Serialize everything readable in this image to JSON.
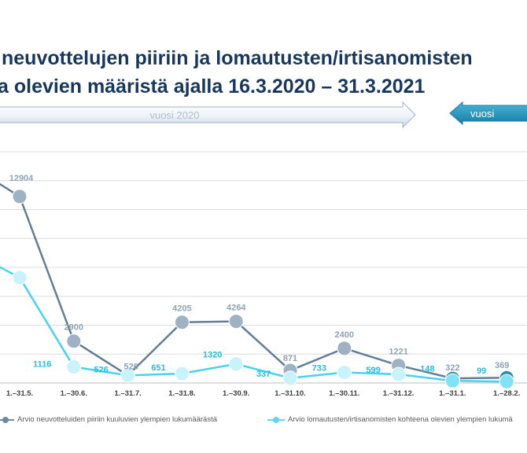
{
  "title": {
    "line1": "neuvottelujen piiriin ja lomautusten/irtisanomisten",
    "line2": "a olevien määristä ajalla 16.3.2020 – 31.3.2021"
  },
  "banners": {
    "year_2020": "vuosi 2020",
    "year_2021": "vuosi"
  },
  "legend": {
    "series1": "Arvio neuvotteluiden piiriin kuuluvien ylempien lukumäärästä",
    "series2": "Arvio lomautusten/irtisanomisten kohteena olevien ylempien lukumä"
  },
  "colors": {
    "series1": "#627e95",
    "series1_marker": "#9fb2c4",
    "series1_label": "#8da3b6",
    "series2": "#47d2ee",
    "series2_marker": "#c8f3fb",
    "series2_label": "#25bde0",
    "series1_2021_marker": "#2f8fa8",
    "title": "#17375e",
    "arrow_2021": "#1f8fb8"
  },
  "chart_data": {
    "type": "line",
    "categories": [
      "1.–31.5.",
      "1.–30.6.",
      "1.–31.7.",
      "1.–31.8.",
      "1.–30.9.",
      "1.–31.10.",
      "1.–30.11.",
      "1.–31.12.",
      "1.–31.1.",
      "1.–28.2."
    ],
    "grid": true,
    "ylim": [
      0,
      16000
    ],
    "series": [
      {
        "name": "Arvio neuvotteluiden piiriin kuuluvien ylempien lukumäärästä",
        "values": [
          12904,
          2900,
          526,
          4205,
          4264,
          871,
          2400,
          1221,
          322,
          369
        ],
        "labels": [
          "12904",
          "2900",
          "526",
          "4205",
          "4264",
          "871",
          "2400",
          "1221",
          "322",
          "369"
        ]
      },
      {
        "name": "Arvio lomautusten/irtisanomisten kohteena olevien ylempien lukumä",
        "values": [
          7300,
          1116,
          526,
          651,
          1320,
          337,
          733,
          599,
          148,
          99
        ],
        "labels": [
          "",
          "1116",
          "526",
          "651",
          "1320",
          "337",
          "733",
          "599",
          "148",
          "99"
        ]
      }
    ]
  }
}
